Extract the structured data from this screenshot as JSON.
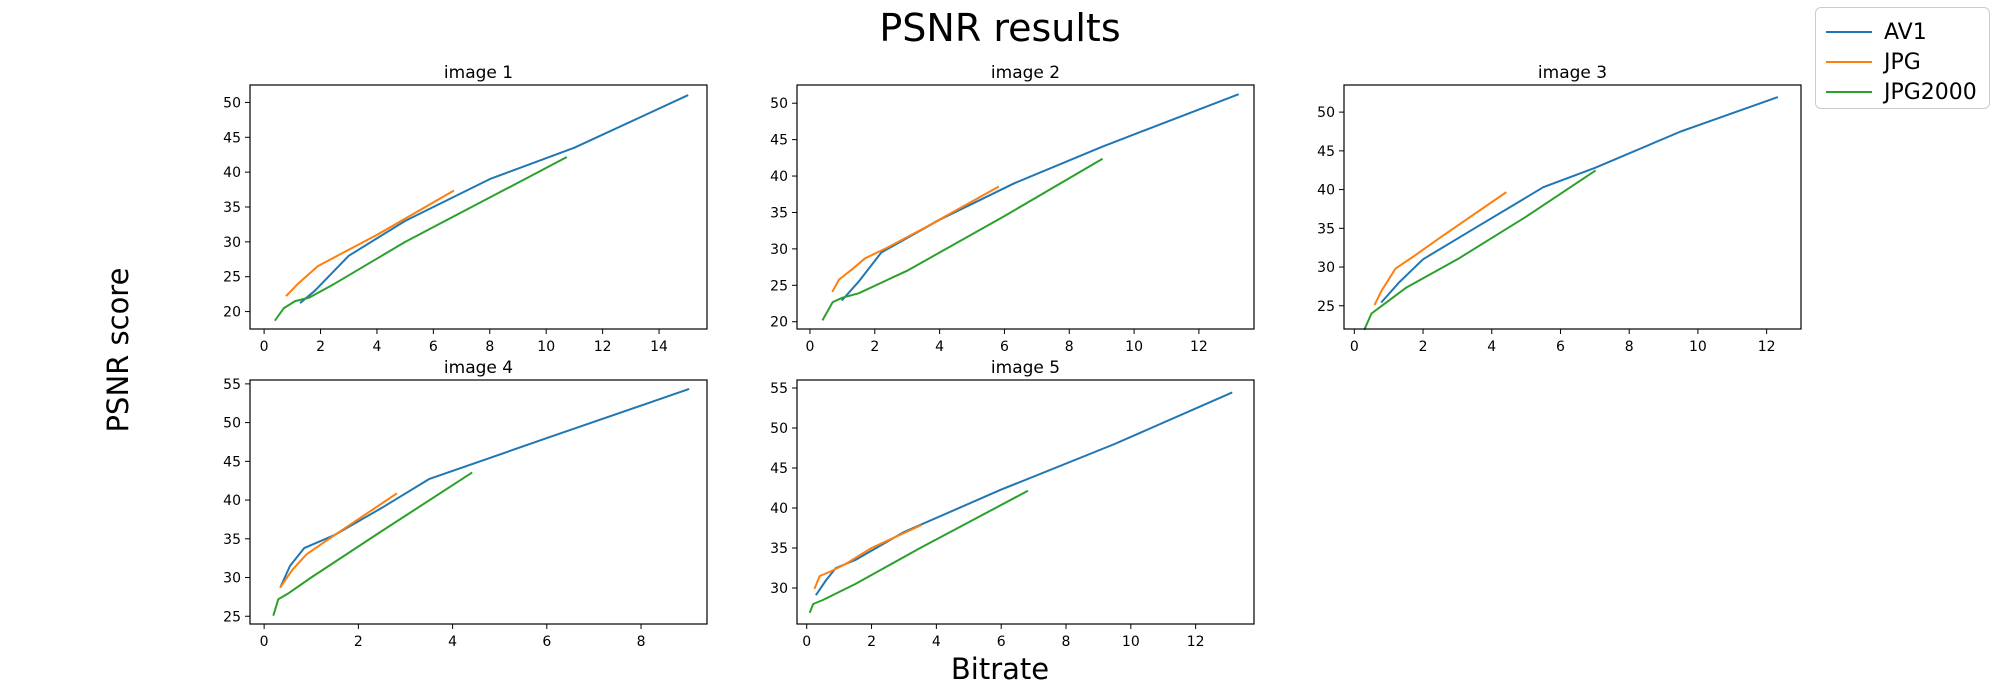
{
  "figure": {
    "title": "PSNR results",
    "xlabel": "Bitrate",
    "ylabel": "PSNR score"
  },
  "legend": [
    {
      "name": "AV1",
      "color": "#1f77b4"
    },
    {
      "name": "JPG",
      "color": "#ff7f0e"
    },
    {
      "name": "JPG2000",
      "color": "#2ca02c"
    }
  ],
  "chart_data": [
    {
      "type": "line",
      "title": "image 1",
      "xlim": [
        -0.5,
        15.7
      ],
      "ylim": [
        17.5,
        52.5
      ],
      "xticks": [
        0,
        2,
        4,
        6,
        8,
        10,
        12,
        14
      ],
      "yticks": [
        20,
        25,
        30,
        35,
        40,
        45,
        50
      ],
      "series": [
        {
          "name": "AV1",
          "x": [
            1.3,
            1.8,
            3.0,
            5.0,
            8.0,
            11.0,
            15.0
          ],
          "y": [
            21.3,
            23.0,
            28.0,
            33.0,
            39.0,
            43.5,
            51.0
          ]
        },
        {
          "name": "JPG",
          "x": [
            0.8,
            1.2,
            1.9,
            2.5,
            4.0,
            6.7
          ],
          "y": [
            22.3,
            24.0,
            26.5,
            27.8,
            31.0,
            37.3
          ]
        },
        {
          "name": "JPG2000",
          "x": [
            0.4,
            0.7,
            1.1,
            1.6,
            2.5,
            5.0,
            10.7
          ],
          "y": [
            18.8,
            20.5,
            21.5,
            22.0,
            24.0,
            30.0,
            42.1
          ]
        }
      ]
    },
    {
      "type": "line",
      "title": "image 2",
      "xlim": [
        -0.4,
        13.7
      ],
      "ylim": [
        19.0,
        52.5
      ],
      "xticks": [
        0,
        2,
        4,
        6,
        8,
        10,
        12
      ],
      "yticks": [
        20,
        25,
        30,
        35,
        40,
        45,
        50
      ],
      "series": [
        {
          "name": "AV1",
          "x": [
            1.0,
            1.5,
            2.2,
            4.0,
            6.3,
            9.0,
            13.2
          ],
          "y": [
            23.0,
            25.5,
            29.5,
            34.0,
            39.0,
            44.0,
            51.2
          ]
        },
        {
          "name": "JPG",
          "x": [
            0.7,
            0.9,
            1.3,
            1.7,
            2.4,
            3.5,
            5.8
          ],
          "y": [
            24.2,
            25.8,
            27.2,
            28.7,
            30.2,
            32.8,
            38.5
          ]
        },
        {
          "name": "JPG2000",
          "x": [
            0.4,
            0.7,
            1.0,
            1.5,
            3.0,
            6.0,
            9.0
          ],
          "y": [
            20.3,
            22.7,
            23.3,
            23.9,
            27.0,
            34.5,
            42.3
          ]
        }
      ]
    },
    {
      "type": "line",
      "title": "image 3",
      "xlim": [
        -0.3,
        13.0
      ],
      "ylim": [
        22.0,
        53.5
      ],
      "xticks": [
        0,
        2,
        4,
        6,
        8,
        10,
        12
      ],
      "yticks": [
        25,
        30,
        35,
        40,
        45,
        50
      ],
      "series": [
        {
          "name": "AV1",
          "x": [
            0.8,
            1.3,
            2.0,
            3.5,
            5.5,
            7.0,
            9.5,
            12.3
          ],
          "y": [
            25.5,
            28.0,
            31.0,
            35.0,
            40.3,
            42.8,
            47.5,
            51.9
          ]
        },
        {
          "name": "JPG",
          "x": [
            0.6,
            0.8,
            1.2,
            1.7,
            2.5,
            4.4
          ],
          "y": [
            25.2,
            27.0,
            29.8,
            31.3,
            33.8,
            39.6
          ]
        },
        {
          "name": "JPG2000",
          "x": [
            0.3,
            0.5,
            0.8,
            1.5,
            3.0,
            5.0,
            7.0
          ],
          "y": [
            22.0,
            24.0,
            25.0,
            27.3,
            31.0,
            36.5,
            42.4
          ]
        }
      ]
    },
    {
      "type": "line",
      "title": "image 4",
      "xlim": [
        -0.3,
        9.4
      ],
      "ylim": [
        24.0,
        55.5
      ],
      "xticks": [
        0,
        2,
        4,
        6,
        8
      ],
      "yticks": [
        25,
        30,
        35,
        40,
        45,
        50,
        55
      ],
      "series": [
        {
          "name": "AV1",
          "x": [
            0.35,
            0.55,
            0.85,
            1.5,
            2.5,
            3.5,
            6.0,
            9.0
          ],
          "y": [
            28.8,
            31.5,
            33.8,
            35.5,
            39.0,
            42.7,
            48.0,
            54.3
          ]
        },
        {
          "name": "JPG",
          "x": [
            0.35,
            0.6,
            0.9,
            1.5,
            2.8
          ],
          "y": [
            28.8,
            31.0,
            33.0,
            35.5,
            40.8
          ]
        },
        {
          "name": "JPG2000",
          "x": [
            0.2,
            0.3,
            0.5,
            1.0,
            2.5,
            4.4
          ],
          "y": [
            25.2,
            27.2,
            27.9,
            30.0,
            36.0,
            43.5
          ]
        }
      ]
    },
    {
      "type": "line",
      "title": "image 5",
      "xlim": [
        -0.3,
        13.8
      ],
      "ylim": [
        25.5,
        56.0
      ],
      "xticks": [
        0,
        2,
        4,
        6,
        8,
        10,
        12
      ],
      "yticks": [
        30,
        35,
        40,
        45,
        50,
        55
      ],
      "series": [
        {
          "name": "AV1",
          "x": [
            0.3,
            0.6,
            0.9,
            1.5,
            3.0,
            6.0,
            9.5,
            13.1
          ],
          "y": [
            29.2,
            31.0,
            32.5,
            33.5,
            37.0,
            42.3,
            48.0,
            54.4
          ]
        },
        {
          "name": "JPG",
          "x": [
            0.25,
            0.4,
            0.7,
            1.2,
            2.0,
            3.5
          ],
          "y": [
            30.0,
            31.5,
            32.0,
            33.0,
            35.0,
            37.8
          ]
        },
        {
          "name": "JPG2000",
          "x": [
            0.1,
            0.2,
            0.5,
            1.5,
            3.5,
            6.8
          ],
          "y": [
            27.0,
            28.0,
            28.5,
            30.5,
            35.0,
            42.1
          ]
        }
      ]
    }
  ]
}
